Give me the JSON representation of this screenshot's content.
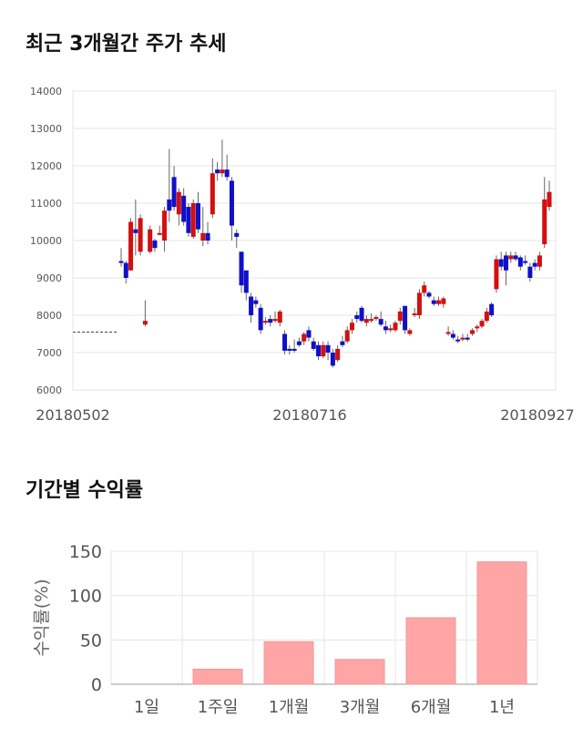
{
  "sections": {
    "price_title": "최근 3개월간 주가 추세",
    "returns_title": "기간별 수익률"
  },
  "colors": {
    "up": "#d40f0f",
    "down": "#1010c8",
    "bar": "#ffa5a5",
    "bar_stroke": "#e99",
    "grid": "#e6e6e6"
  },
  "chart_data": [
    {
      "type": "candlestick",
      "title": "최근 3개월간 주가 추세",
      "ylim": [
        6000,
        14000
      ],
      "yticks": [
        6000,
        7000,
        8000,
        9000,
        10000,
        11000,
        12000,
        13000,
        14000
      ],
      "xtick_labels": [
        "20180502",
        "20180716",
        "20180927"
      ],
      "reference_line": 7550,
      "candles": [
        [
          9450,
          9400,
          9800,
          9300
        ],
        [
          9400,
          9000,
          9450,
          8850
        ],
        [
          9200,
          10500,
          10600,
          9200
        ],
        [
          10300,
          10200,
          11100,
          9600
        ],
        [
          9700,
          10600,
          10700,
          9600
        ],
        [
          7750,
          7850,
          8400,
          7700
        ],
        [
          9700,
          10300,
          10400,
          9650
        ],
        [
          10000,
          9800,
          10050,
          9700
        ],
        [
          10150,
          10200,
          10400,
          10150
        ],
        [
          10000,
          10800,
          10900,
          9700
        ],
        [
          11100,
          10800,
          12450,
          10500
        ],
        [
          11700,
          10900,
          12000,
          10800
        ],
        [
          10700,
          11300,
          11400,
          10400
        ],
        [
          11200,
          10500,
          11400,
          10400
        ],
        [
          10900,
          10200,
          11000,
          10100
        ],
        [
          10100,
          11000,
          11100,
          10050
        ],
        [
          11000,
          10300,
          11300,
          10200
        ],
        [
          10000,
          10200,
          10900,
          9850
        ],
        [
          10200,
          10000,
          10500,
          9900
        ],
        [
          10700,
          11800,
          12200,
          10600
        ],
        [
          11900,
          11800,
          12100,
          11600
        ],
        [
          11800,
          11900,
          12700,
          11700
        ],
        [
          11900,
          11700,
          12300,
          11600
        ],
        [
          11600,
          10400,
          11700,
          10000
        ],
        [
          10200,
          10100,
          10300,
          9800
        ],
        [
          9700,
          8800,
          9700,
          8600
        ],
        [
          9200,
          8600,
          9200,
          8400
        ],
        [
          8500,
          8000,
          8600,
          7800
        ],
        [
          8400,
          8300,
          8500,
          8200
        ],
        [
          8200,
          7600,
          8300,
          7500
        ],
        [
          7800,
          7850,
          7950,
          7750
        ],
        [
          7900,
          7800,
          8000,
          7700
        ],
        [
          7850,
          7900,
          8100,
          7800
        ],
        [
          7800,
          8100,
          8150,
          7700
        ],
        [
          7500,
          7050,
          7600,
          6950
        ],
        [
          7100,
          7050,
          7200,
          6950
        ],
        [
          7100,
          7050,
          7350,
          7000
        ],
        [
          7300,
          7200,
          7400,
          7150
        ],
        [
          7300,
          7500,
          7550,
          7200
        ],
        [
          7600,
          7400,
          7700,
          7300
        ],
        [
          7300,
          7100,
          7400,
          7050
        ],
        [
          7200,
          6900,
          7300,
          6800
        ],
        [
          6900,
          7200,
          7300,
          6850
        ],
        [
          7200,
          7000,
          7300,
          6800
        ],
        [
          7000,
          6650,
          7100,
          6600
        ],
        [
          6800,
          7100,
          7200,
          6750
        ],
        [
          7300,
          7200,
          7450,
          7150
        ],
        [
          7300,
          7600,
          7700,
          7250
        ],
        [
          7600,
          7800,
          7900,
          7500
        ],
        [
          8000,
          7900,
          8100,
          7800
        ],
        [
          8200,
          7850,
          8250,
          7800
        ],
        [
          7800,
          7900,
          8000,
          7700
        ],
        [
          7850,
          7900,
          8050,
          7800
        ],
        [
          7900,
          7950,
          8000,
          7850
        ],
        [
          7900,
          7750,
          8100,
          7700
        ],
        [
          7700,
          7600,
          7850,
          7500
        ],
        [
          7600,
          7650,
          7750,
          7550
        ],
        [
          7600,
          7800,
          7850,
          7550
        ],
        [
          7850,
          8100,
          8200,
          7750
        ],
        [
          8250,
          7600,
          8250,
          7500
        ],
        [
          7500,
          7600,
          7650,
          7450
        ],
        [
          8000,
          8050,
          8200,
          7950
        ],
        [
          8000,
          8600,
          8700,
          7900
        ],
        [
          8600,
          8800,
          8900,
          8500
        ],
        [
          8600,
          8500,
          8650,
          8450
        ],
        [
          8400,
          8300,
          8500,
          8250
        ],
        [
          8300,
          8400,
          8500,
          8250
        ],
        [
          8300,
          8450,
          8500,
          8200
        ],
        [
          7500,
          7550,
          7700,
          7450
        ],
        [
          7500,
          7400,
          7600,
          7350
        ],
        [
          7350,
          7300,
          7450,
          7250
        ],
        [
          7350,
          7400,
          7500,
          7300
        ],
        [
          7400,
          7350,
          7500,
          7300
        ],
        [
          7500,
          7600,
          7650,
          7450
        ],
        [
          7650,
          7700,
          7750,
          7550
        ],
        [
          7700,
          7850,
          7900,
          7650
        ],
        [
          7850,
          8100,
          8200,
          7800
        ],
        [
          8300,
          8000,
          8350,
          7950
        ],
        [
          8700,
          9500,
          9600,
          8600
        ],
        [
          9500,
          9300,
          9700,
          9200
        ],
        [
          9600,
          9200,
          9700,
          8800
        ],
        [
          9500,
          9600,
          9700,
          9400
        ],
        [
          9600,
          9500,
          9700,
          9450
        ],
        [
          9550,
          9300,
          9600,
          9200
        ],
        [
          9450,
          9400,
          9600,
          9350
        ],
        [
          9300,
          9000,
          9400,
          8900
        ],
        [
          9400,
          9300,
          9500,
          9200
        ],
        [
          9300,
          9600,
          9700,
          9200
        ],
        [
          9900,
          11100,
          11700,
          9800
        ],
        [
          10900,
          11300,
          11600,
          10800
        ]
      ]
    },
    {
      "type": "bar",
      "title": "기간별 수익률",
      "ylabel": "수익률(%)",
      "ylim": [
        0,
        150
      ],
      "yticks": [
        0,
        50,
        100,
        150
      ],
      "categories": [
        "1일",
        "1주일",
        "1개월",
        "3개월",
        "6개월",
        "1년"
      ],
      "values": [
        0,
        17,
        48,
        28,
        75,
        138
      ]
    }
  ]
}
